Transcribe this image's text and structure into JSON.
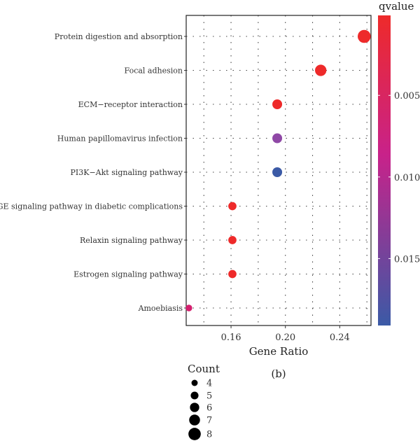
{
  "chart_data": {
    "type": "scatter",
    "xlabel": "Gene Ratio",
    "x_ticks": [
      0.16,
      0.2,
      0.24
    ],
    "x_tick_labels": [
      "0.16",
      "0.20",
      "0.24"
    ],
    "xlim": [
      0.127,
      0.263
    ],
    "categories": [
      "Protein digestion and absorption",
      "Focal adhesion",
      "ECM−receptor interaction",
      "Human papillomavirus infection",
      "PI3K−Akt signaling pathway",
      "AGE−RAGE signaling pathway in diabetic complications",
      "Relaxin signaling pathway",
      "Estrogen signaling pathway",
      "Amoebiasis"
    ],
    "points": [
      {
        "category": "Protein digestion and absorption",
        "gene_ratio": 0.258,
        "count": 8,
        "qvalue": 0.0003,
        "color": "#ee2a2a"
      },
      {
        "category": "Focal adhesion",
        "gene_ratio": 0.226,
        "count": 7,
        "qvalue": 0.0004,
        "color": "#ee2a2a"
      },
      {
        "category": "ECM−receptor interaction",
        "gene_ratio": 0.194,
        "count": 6,
        "qvalue": 0.0005,
        "color": "#ee2a2a"
      },
      {
        "category": "Human papillomavirus infection",
        "gene_ratio": 0.194,
        "count": 6,
        "qvalue": 0.0145,
        "color": "#8f48a6"
      },
      {
        "category": "PI3K−Akt signaling pathway",
        "gene_ratio": 0.194,
        "count": 6,
        "qvalue": 0.0185,
        "color": "#3b5aa6"
      },
      {
        "category": "AGE−RAGE signaling pathway in diabetic complications",
        "gene_ratio": 0.161,
        "count": 5,
        "qvalue": 0.0006,
        "color": "#ee2a2a"
      },
      {
        "category": "Relaxin signaling pathway",
        "gene_ratio": 0.161,
        "count": 5,
        "qvalue": 0.0007,
        "color": "#ee2a2a"
      },
      {
        "category": "Estrogen signaling pathway",
        "gene_ratio": 0.161,
        "count": 5,
        "qvalue": 0.0008,
        "color": "#ee2a2a"
      },
      {
        "category": "Amoebiasis",
        "gene_ratio": 0.129,
        "count": 4,
        "qvalue": 0.0055,
        "color": "#d41f6e"
      }
    ],
    "grid": true,
    "grid_style": "dotted",
    "colorbar": {
      "title": "qvalue",
      "range": [
        0.0001,
        0.0191
      ],
      "ticks": [
        0.005,
        0.01,
        0.015
      ],
      "tick_labels": [
        "0.005",
        "0.010",
        "0.015"
      ],
      "color_low": "#ee2a2a",
      "color_mid": "#c8228a",
      "color_high": "#3b5aa6"
    },
    "size_legend": {
      "title": "Count",
      "values": [
        4,
        5,
        6,
        7,
        8
      ],
      "labels": [
        "4",
        "5",
        "6",
        "7",
        "8"
      ]
    },
    "caption": "(b)"
  }
}
